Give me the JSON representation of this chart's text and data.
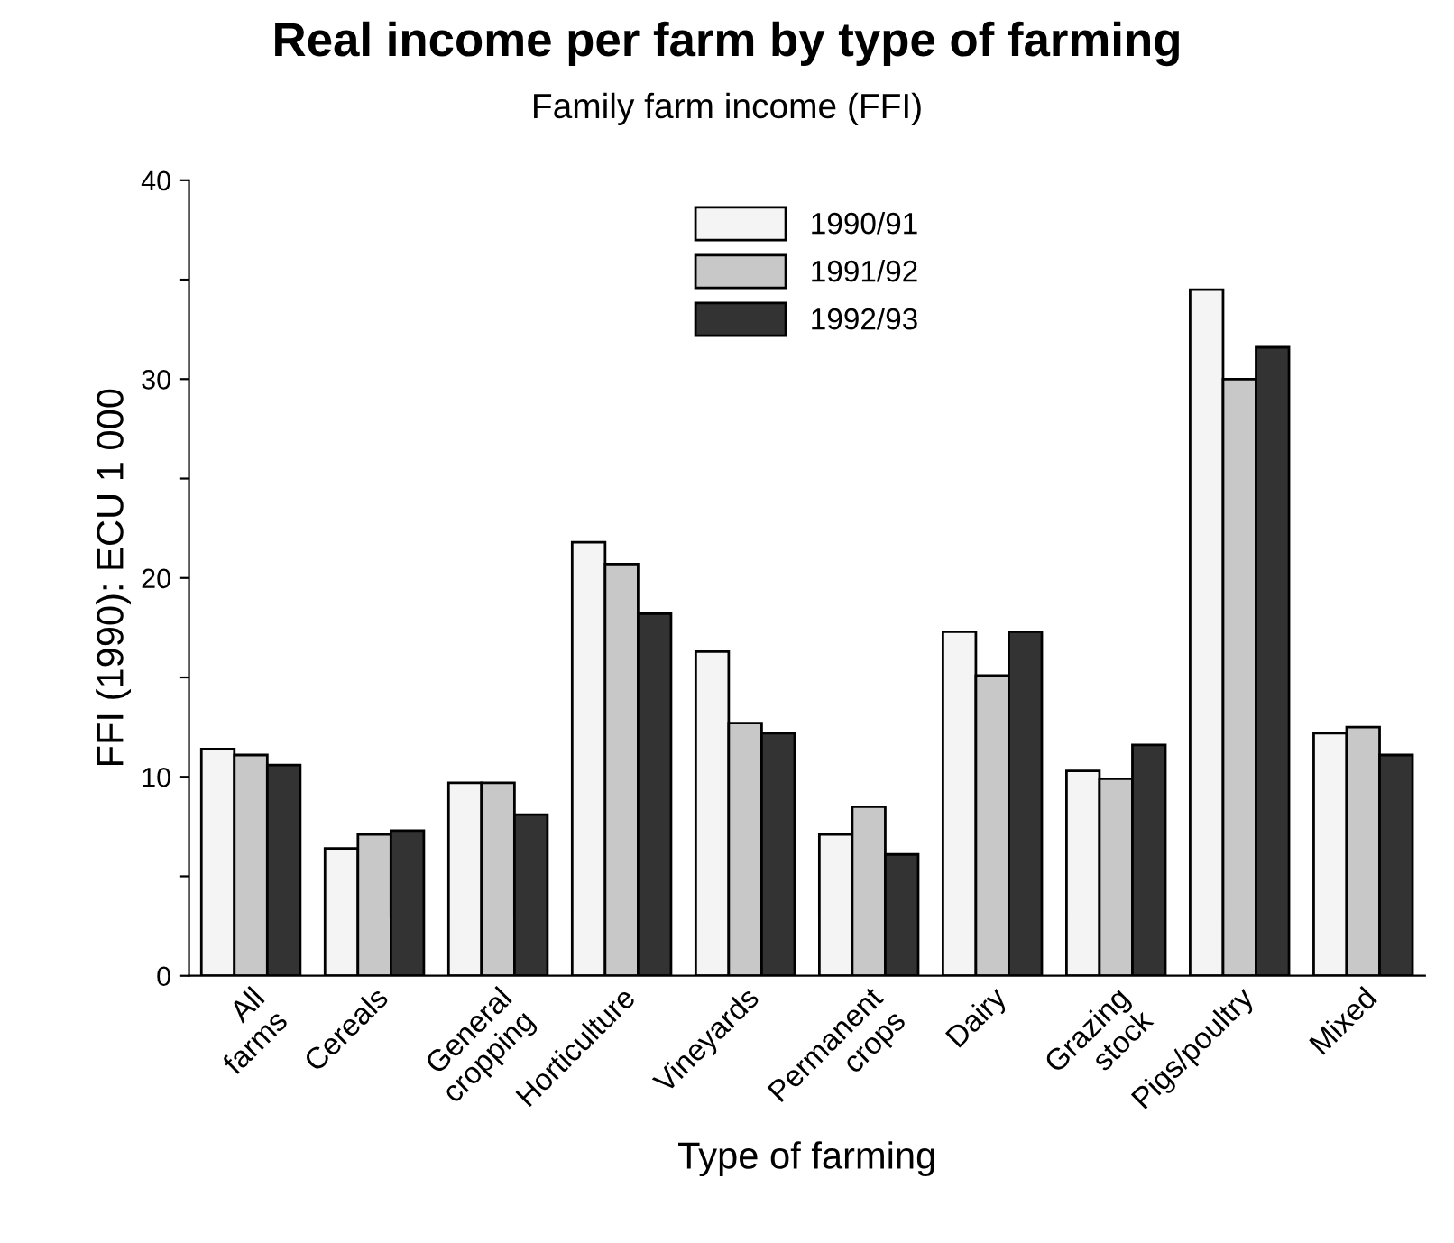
{
  "chart_data": {
    "type": "bar",
    "title": "Real income per farm by type of farming",
    "subtitle": "Family farm income (FFI)",
    "xlabel": "Type of farming",
    "ylabel": "FFI (1990): ECU 1 000",
    "categories": [
      "All\nfarms",
      "Cereals",
      "General\ncropping",
      "Horticulture",
      "Vineyards",
      "Permanent\ncrops",
      "Dairy",
      "Grazing\nstock",
      "Pigs/poultry",
      "Mixed"
    ],
    "series": [
      {
        "name": "1990/91",
        "color": "#f4f4f4",
        "values": [
          11.4,
          6.4,
          9.7,
          21.8,
          16.3,
          7.1,
          17.3,
          10.3,
          34.5,
          12.2
        ]
      },
      {
        "name": "1991/92",
        "color": "#c8c8c8",
        "values": [
          11.1,
          7.1,
          9.7,
          20.7,
          12.7,
          8.5,
          15.1,
          9.9,
          30.0,
          12.5
        ]
      },
      {
        "name": "1992/93",
        "color": "#333333",
        "values": [
          10.6,
          7.3,
          8.1,
          18.2,
          12.2,
          6.1,
          17.3,
          11.6,
          31.6,
          11.1
        ]
      }
    ],
    "ylim": [
      0,
      40
    ],
    "yticks": [
      0,
      {
        "value": 5,
        "label": null
      },
      10,
      {
        "value": 15,
        "label": null
      },
      20,
      {
        "value": 25,
        "label": null
      },
      30,
      {
        "value": 35,
        "label": null
      },
      40
    ],
    "grid": false,
    "legend": "top"
  }
}
